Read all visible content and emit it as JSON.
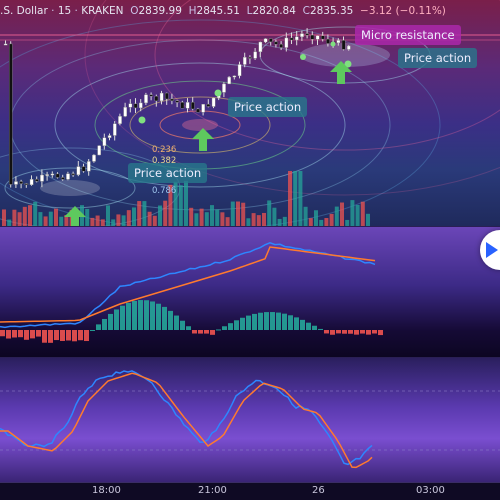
{
  "legend": {
    "symbol": ".S. Dollar",
    "interval": "15",
    "exchange": "KRAKEN",
    "open": "2839.99",
    "high": "2845.51",
    "low": "2820.84",
    "close": "2835.35",
    "change": "−3.12 (−0.11%)"
  },
  "annotations": {
    "price_action_1": "Price action",
    "price_action_2": "Price action",
    "price_action_3": "Price action",
    "micro_resistance": "Micro resistance"
  },
  "fib_levels": [
    "0.236",
    "0.382",
    "0.786"
  ],
  "time_axis": [
    "18:00",
    "21:00",
    "26",
    "03:00"
  ],
  "icons": {
    "play": "play-icon",
    "arrows": "arrow-up-icon",
    "dots": "dot-marker-icon"
  },
  "colors": {
    "bull": "#26a69a",
    "bear": "#ef5350",
    "candle_bull": "#ffffff",
    "candle_bear": "#111111",
    "macd_line": "#2e86ff",
    "signal_line": "#ff7a2e",
    "arrow": "#5ec95e",
    "accent_blue": "#2962ff"
  }
}
